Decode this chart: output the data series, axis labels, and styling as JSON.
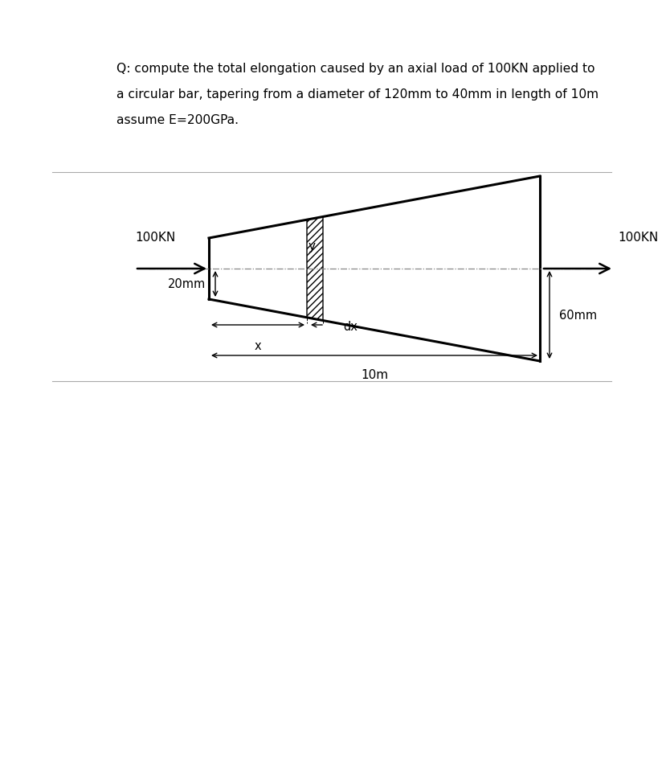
{
  "title_line1": "Q: compute the total elongation caused by an axial load of 100KN applied to",
  "title_line2": "a circular bar, tapering from a diameter of 120mm to 40mm in length of 10m",
  "title_line3": "assume E=200GPa.",
  "bg_color": "#ffffff",
  "text_color": "#000000",
  "fig_width": 7.86,
  "fig_height": 9.51,
  "label_100kn_left": "100KN",
  "label_100kn_right": "100KN",
  "label_20mm": "20mm",
  "label_60mm": "60mm",
  "label_x": "x",
  "label_y": "y",
  "label_dx": "dx",
  "label_10m": "10m",
  "sep_line_color": "#aaaaaa",
  "dash_color": "#888888",
  "bar_lw": 2.2,
  "arrow_lw": 1.8,
  "dim_arrow_lw": 1.0
}
